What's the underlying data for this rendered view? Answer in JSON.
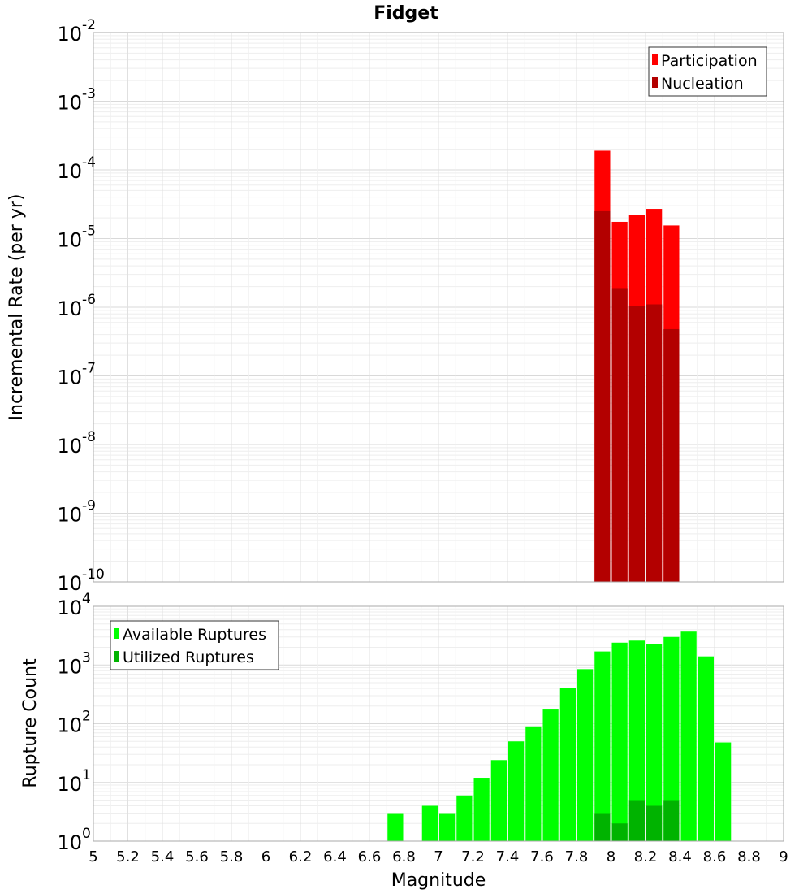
{
  "chart_data": [
    {
      "type": "bar",
      "title": "Fidget",
      "xlabel": "",
      "ylabel": "Incremental Rate (per yr)",
      "yscale": "log",
      "ylim_exp": [
        -10,
        -2
      ],
      "xlim": [
        5,
        9
      ],
      "bin_width": 0.1,
      "legend_position": "top-right",
      "series": [
        {
          "name": "Participation",
          "color": "#ff0000",
          "x": [
            7.95,
            8.05,
            8.15,
            8.25,
            8.35
          ],
          "values": [
            0.00019,
            1.75e-05,
            2.2e-05,
            2.7e-05,
            1.55e-05
          ]
        },
        {
          "name": "Nucleation",
          "color": "#b30000",
          "x": [
            7.95,
            8.05,
            8.15,
            8.25,
            8.35
          ],
          "values": [
            2.5e-05,
            1.9e-06,
            1.05e-06,
            1.1e-06,
            4.8e-07
          ]
        }
      ]
    },
    {
      "type": "bar",
      "title": "",
      "xlabel": "Magnitude",
      "ylabel": "Rupture Count",
      "yscale": "log",
      "ylim_exp": [
        0,
        4
      ],
      "xlim": [
        5,
        9
      ],
      "bin_width": 0.1,
      "legend_position": "top-left",
      "series": [
        {
          "name": "Available Ruptures",
          "color": "#00ff00",
          "x": [
            6.75,
            6.95,
            7.05,
            7.15,
            7.25,
            7.35,
            7.45,
            7.55,
            7.65,
            7.75,
            7.85,
            7.95,
            8.05,
            8.15,
            8.25,
            8.35,
            8.45,
            8.55,
            8.65
          ],
          "values": [
            3,
            4,
            3,
            6,
            12,
            24,
            50,
            90,
            180,
            400,
            850,
            1700,
            2400,
            2600,
            2300,
            3000,
            3700,
            1400,
            48
          ]
        },
        {
          "name": "Utilized Ruptures",
          "color": "#00b300",
          "x": [
            7.95,
            8.05,
            8.15,
            8.25,
            8.35
          ],
          "values": [
            3,
            2,
            5,
            4,
            5
          ]
        }
      ],
      "xticks": [
        "5",
        "5.2",
        "5.4",
        "5.6",
        "5.8",
        "6",
        "6.2",
        "6.4",
        "6.6",
        "6.8",
        "7",
        "7.2",
        "7.4",
        "7.6",
        "7.8",
        "8",
        "8.2",
        "8.4",
        "8.6",
        "8.8",
        "9"
      ]
    }
  ]
}
